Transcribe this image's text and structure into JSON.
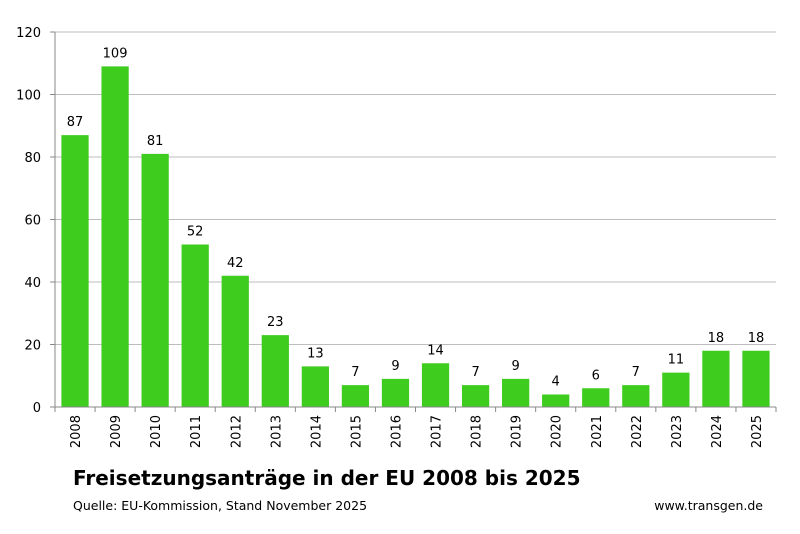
{
  "chart_data": {
    "type": "bar",
    "title": "Freisetzungsanträge in der EU 2008 bis 2025",
    "source": "Quelle: EU-Kommission, Stand November 2025",
    "website": "www.transgen.de",
    "categories": [
      "2008",
      "2009",
      "2010",
      "2011",
      "2012",
      "2013",
      "2014",
      "2015",
      "2016",
      "2017",
      "2018",
      "2019",
      "2020",
      "2021",
      "2022",
      "2023",
      "2024",
      "2025"
    ],
    "values": [
      87,
      109,
      81,
      52,
      42,
      23,
      13,
      7,
      9,
      14,
      7,
      9,
      4,
      6,
      7,
      11,
      18,
      18
    ],
    "ylim": [
      0,
      120
    ],
    "yticks": [
      0,
      20,
      40,
      60,
      80,
      100,
      120
    ],
    "grid": true,
    "bar_color": "#3ecc1e",
    "data_labels": true
  }
}
